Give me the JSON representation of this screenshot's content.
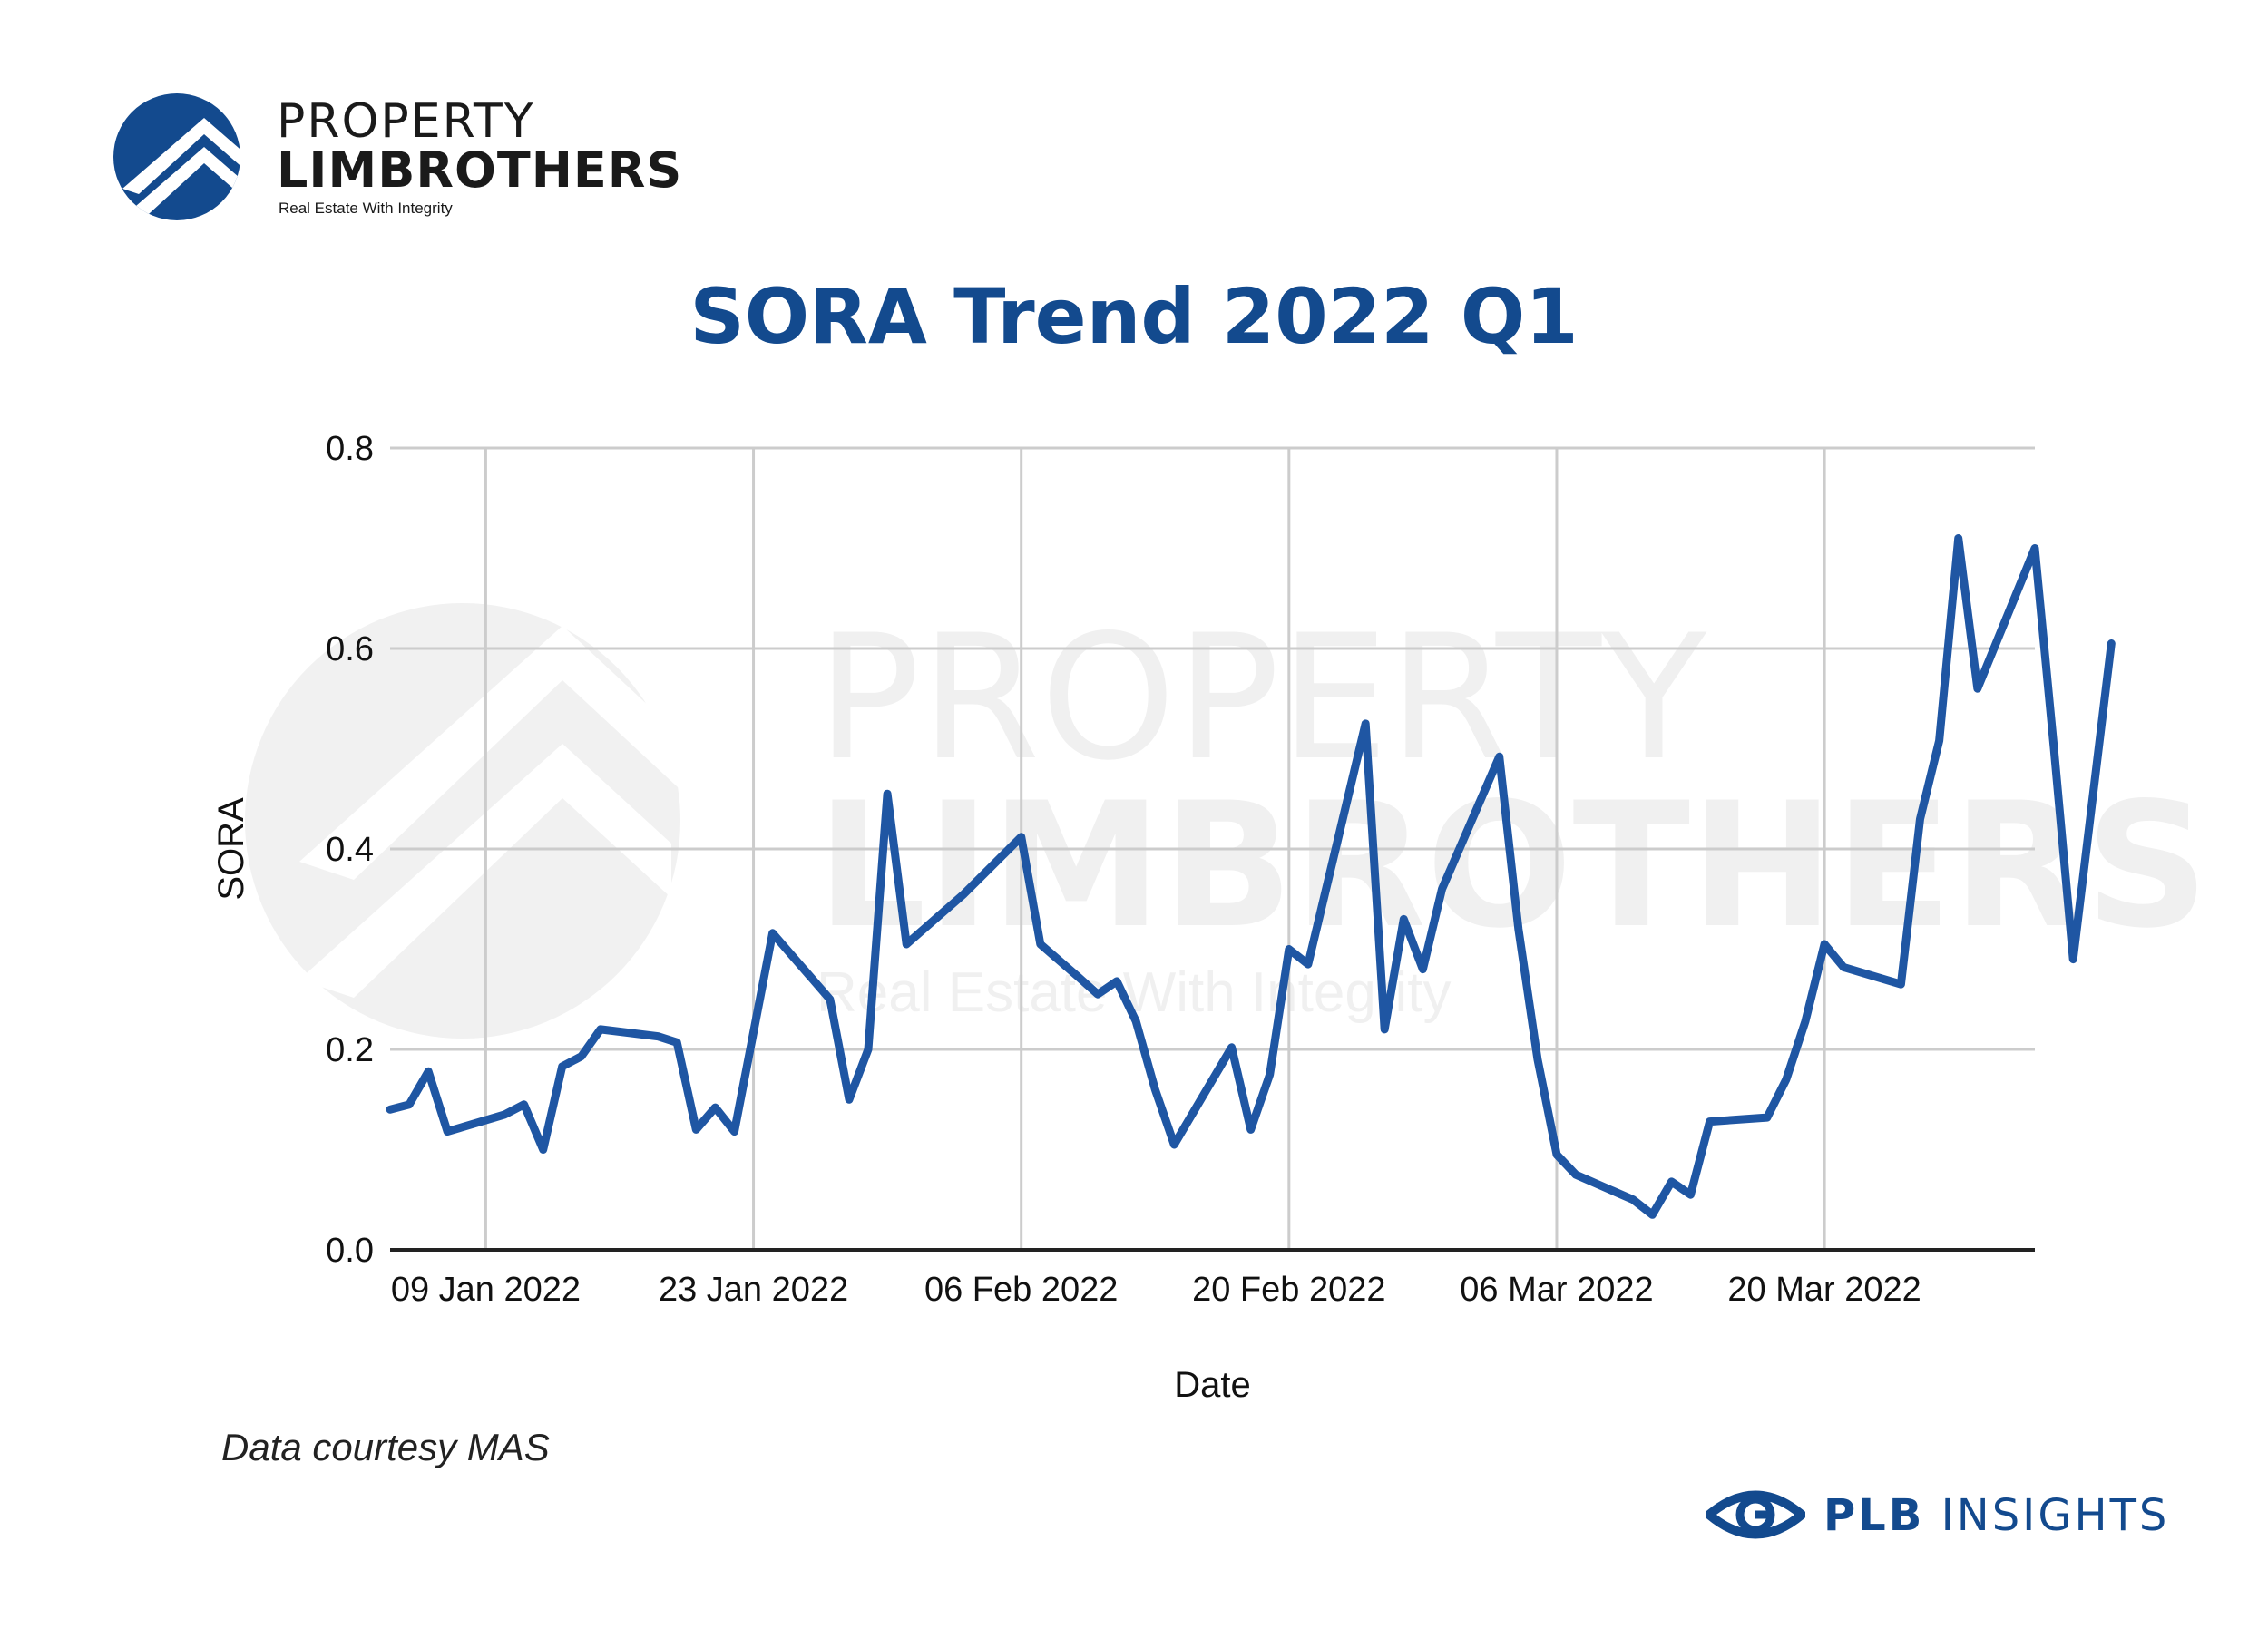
{
  "logo": {
    "line1": "PROPERTY",
    "line2": "LIMBROTHERS",
    "tagline": "Real Estate With Integrity",
    "icon": "house-roof-chevron-icon"
  },
  "title": "SORA Trend 2022 Q1",
  "source_note": "Data courtesy MAS",
  "brand": {
    "icon": "eye-icon",
    "name_bold": "PLB",
    "name_rest": "INSIGHTS"
  },
  "colors": {
    "accent": "#134a8e",
    "series": "#1f56a3",
    "grid": "#cccccc"
  },
  "chart_data": {
    "type": "line",
    "xlabel": "Date",
    "ylabel": "SORA",
    "ylim": [
      0,
      0.8
    ],
    "yticks": [
      "0.0",
      "0.2",
      "0.4",
      "0.6",
      "0.8"
    ],
    "xticks": [
      "09 Jan 2022",
      "23 Jan 2022",
      "06 Feb 2022",
      "20 Feb 2022",
      "06 Mar 2022",
      "20 Mar 2022"
    ],
    "xlim": [
      "2022-01-04",
      "2022-03-31"
    ],
    "grid": true,
    "series": [
      {
        "name": "",
        "points": [
          [
            "2022-01-04",
            0.14
          ],
          [
            "2022-01-05",
            0.145
          ],
          [
            "2022-01-06",
            0.178
          ],
          [
            "2022-01-07",
            0.118
          ],
          [
            "2022-01-10",
            0.135
          ],
          [
            "2022-01-11",
            0.145
          ],
          [
            "2022-01-12",
            0.1
          ],
          [
            "2022-01-13",
            0.183
          ],
          [
            "2022-01-14",
            0.193
          ],
          [
            "2022-01-15",
            0.22
          ],
          [
            "2022-01-18",
            0.213
          ],
          [
            "2022-01-19",
            0.207
          ],
          [
            "2022-01-20",
            0.12
          ],
          [
            "2022-01-21",
            0.142
          ],
          [
            "2022-01-22",
            0.118
          ],
          [
            "2022-01-24",
            0.316
          ],
          [
            "2022-01-27",
            0.25
          ],
          [
            "2022-01-28",
            0.15
          ],
          [
            "2022-01-29",
            0.2
          ],
          [
            "2022-01-30",
            0.455
          ],
          [
            "2022-01-31",
            0.305
          ],
          [
            "2022-02-03",
            0.355
          ],
          [
            "2022-02-06",
            0.412
          ],
          [
            "2022-02-07",
            0.305
          ],
          [
            "2022-02-09",
            0.272
          ],
          [
            "2022-02-10",
            0.255
          ],
          [
            "2022-02-11",
            0.268
          ],
          [
            "2022-02-12",
            0.228
          ],
          [
            "2022-02-13",
            0.16
          ],
          [
            "2022-02-14",
            0.105
          ],
          [
            "2022-02-17",
            0.202
          ],
          [
            "2022-02-18",
            0.12
          ],
          [
            "2022-02-19",
            0.175
          ],
          [
            "2022-02-20",
            0.3
          ],
          [
            "2022-02-21",
            0.285
          ],
          [
            "2022-02-24",
            0.525
          ],
          [
            "2022-02-25",
            0.22
          ],
          [
            "2022-02-26",
            0.33
          ],
          [
            "2022-02-27",
            0.28
          ],
          [
            "2022-02-28",
            0.36
          ],
          [
            "2022-03-03",
            0.492
          ],
          [
            "2022-03-04",
            0.32
          ],
          [
            "2022-03-05",
            0.19
          ],
          [
            "2022-03-06",
            0.095
          ],
          [
            "2022-03-07",
            0.075
          ],
          [
            "2022-03-10",
            0.05
          ],
          [
            "2022-03-11",
            0.035
          ],
          [
            "2022-03-12",
            0.068
          ],
          [
            "2022-03-13",
            0.055
          ],
          [
            "2022-03-14",
            0.128
          ],
          [
            "2022-03-17",
            0.132
          ],
          [
            "2022-03-18",
            0.17
          ],
          [
            "2022-03-19",
            0.228
          ],
          [
            "2022-03-20",
            0.305
          ],
          [
            "2022-03-21",
            0.282
          ],
          [
            "2022-03-24",
            0.265
          ],
          [
            "2022-03-25",
            0.43
          ],
          [
            "2022-03-26",
            0.508
          ],
          [
            "2022-03-27",
            0.71
          ],
          [
            "2022-03-28",
            0.56
          ],
          [
            "2022-03-31",
            0.7
          ],
          [
            "2022-04-01",
            0.5
          ],
          [
            "2022-04-02",
            0.29
          ],
          [
            "2022-04-04",
            0.605
          ]
        ]
      }
    ]
  }
}
